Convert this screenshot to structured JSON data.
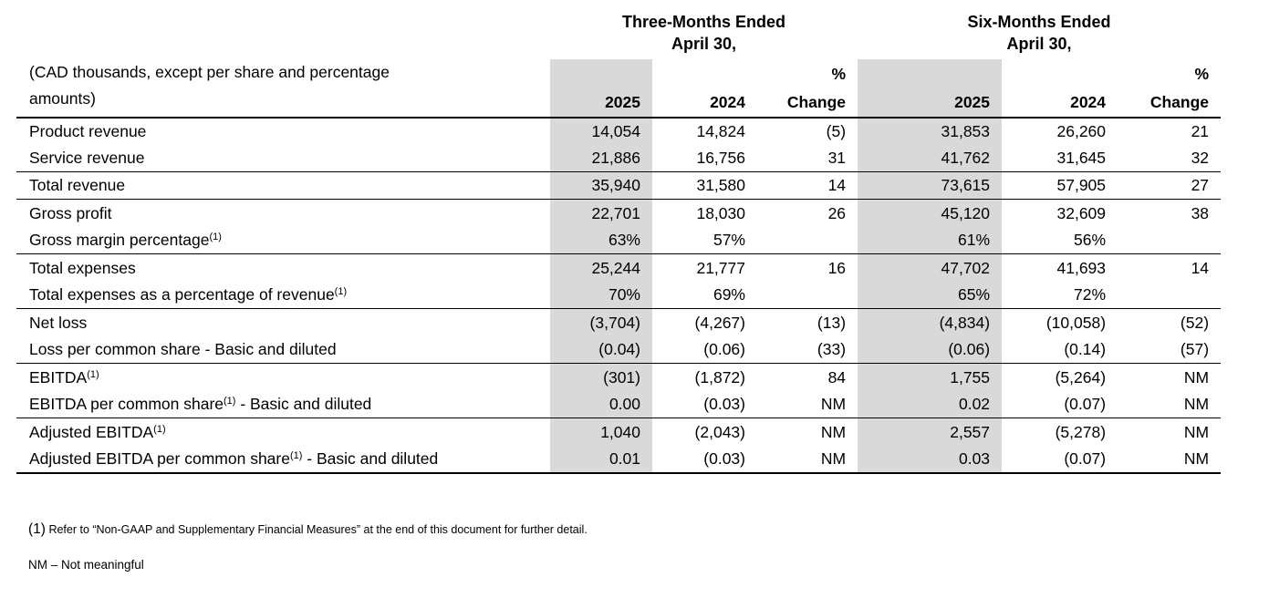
{
  "table": {
    "units_note": "(CAD thousands, except per share and percentage amounts)",
    "periods": [
      {
        "title": "Three-Months Ended",
        "date": "April 30,",
        "years": [
          "2025",
          "2024"
        ],
        "pct": [
          "%",
          "Change"
        ]
      },
      {
        "title": "Six-Months Ended",
        "date": "April 30,",
        "years": [
          "2025",
          "2024"
        ],
        "pct": [
          "%",
          "Change"
        ]
      }
    ],
    "rows": [
      {
        "label": "Product revenue",
        "sup": "",
        "tail": "",
        "values": [
          "14,054",
          "14,824",
          "(5)",
          "31,853",
          "26,260",
          "21"
        ],
        "separator_after": false
      },
      {
        "label": "Service revenue",
        "sup": "",
        "tail": "",
        "values": [
          "21,886",
          "16,756",
          "31",
          "41,762",
          "31,645",
          "32"
        ],
        "separator_after": true
      },
      {
        "label": "Total revenue",
        "sup": "",
        "tail": "",
        "values": [
          "35,940",
          "31,580",
          "14",
          "73,615",
          "57,905",
          "27"
        ],
        "separator_after": true
      },
      {
        "label": "Gross profit",
        "sup": "",
        "tail": "",
        "values": [
          "22,701",
          "18,030",
          "26",
          "45,120",
          "32,609",
          "38"
        ],
        "separator_after": false
      },
      {
        "label": "Gross margin percentage",
        "sup": "(1)",
        "tail": "",
        "values": [
          "63%",
          "57%",
          "",
          "61%",
          "56%",
          ""
        ],
        "separator_after": true
      },
      {
        "label": "Total expenses",
        "sup": "",
        "tail": "",
        "values": [
          "25,244",
          "21,777",
          "16",
          "47,702",
          "41,693",
          "14"
        ],
        "separator_after": false
      },
      {
        "label": "Total expenses as a percentage of revenue",
        "sup": "(1)",
        "tail": "",
        "values": [
          "70%",
          "69%",
          "",
          "65%",
          "72%",
          ""
        ],
        "separator_after": true
      },
      {
        "label": "Net loss",
        "sup": "",
        "tail": "",
        "values": [
          "(3,704)",
          "(4,267)",
          "(13)",
          "(4,834)",
          "(10,058)",
          "(52)"
        ],
        "separator_after": false
      },
      {
        "label": "Loss per common share - Basic and diluted",
        "sup": "",
        "tail": "",
        "values": [
          "(0.04)",
          "(0.06)",
          "(33)",
          "(0.06)",
          "(0.14)",
          "(57)"
        ],
        "separator_after": true
      },
      {
        "label": "EBITDA",
        "sup": "(1)",
        "tail": "",
        "values": [
          "(301)",
          "(1,872)",
          "84",
          "1,755",
          "(5,264)",
          "NM"
        ],
        "separator_after": false
      },
      {
        "label": "EBITDA per common share",
        "sup": "(1)",
        "tail": " - Basic and diluted",
        "values": [
          "0.00",
          "(0.03)",
          "NM",
          "0.02",
          "(0.07)",
          "NM"
        ],
        "separator_after": true
      },
      {
        "label": "Adjusted EBITDA",
        "sup": "(1)",
        "tail": "",
        "values": [
          "1,040",
          "(2,043)",
          "NM",
          "2,557",
          "(5,278)",
          "NM"
        ],
        "separator_after": false
      },
      {
        "label": "Adjusted EBITDA per common share",
        "sup": "(1)",
        "tail": " - Basic and diluted",
        "values": [
          "0.01",
          "(0.03)",
          "NM",
          "0.03",
          "(0.07)",
          "NM"
        ],
        "separator_after": false
      }
    ]
  },
  "footnotes": {
    "fn1_marker": "(1)",
    "fn1_text": "Refer to “Non-GAAP and Supplementary Financial Measures” at the end of this document for further detail.",
    "nm_note": "NM – Not meaningful"
  },
  "colors": {
    "shading": "#d9d9d9",
    "text": "#000000"
  }
}
